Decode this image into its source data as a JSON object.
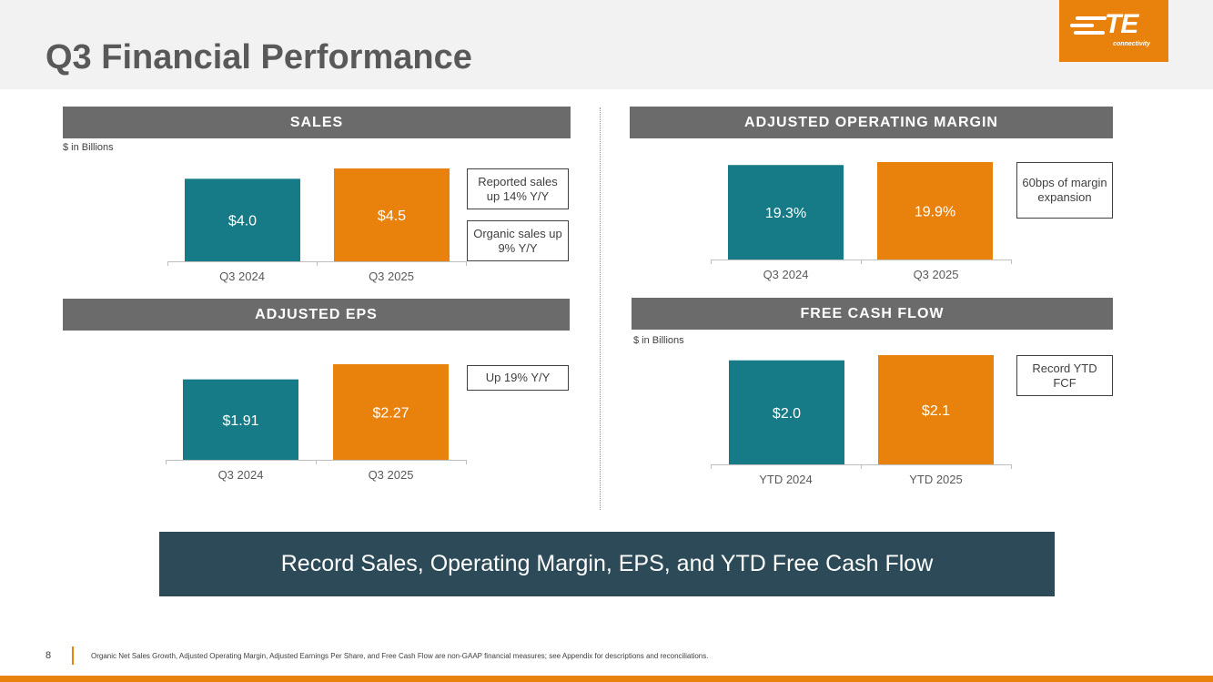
{
  "title": "Q3 Financial Performance",
  "logo": {
    "mark": "TE",
    "word": "connectivity"
  },
  "colors": {
    "teal": "#167b86",
    "orange": "#e8820c",
    "header_gray": "#6b6b6b",
    "banner": "#2d4a58"
  },
  "panels": {
    "sales": {
      "header": "SALES",
      "units": "$ in Billions",
      "callouts": [
        "Reported sales up 14% Y/Y",
        "Organic sales up 9% Y/Y"
      ]
    },
    "margin": {
      "header": "ADJUSTED OPERATING MARGIN",
      "callouts": [
        "60bps of margin expansion"
      ]
    },
    "eps": {
      "header": "ADJUSTED EPS",
      "callouts": [
        "Up 19% Y/Y"
      ]
    },
    "fcf": {
      "header": "FREE CASH FLOW",
      "units": "$ in Billions",
      "callouts": [
        "Record YTD FCF"
      ]
    }
  },
  "chart_data": [
    {
      "type": "bar",
      "title": "SALES",
      "categories": [
        "Q3 2024",
        "Q3 2025"
      ],
      "values": [
        4.0,
        4.5
      ],
      "labels": [
        "$4.0",
        "$4.5"
      ],
      "ylabel": "$ in Billions",
      "colors": [
        "#167b86",
        "#e8820c"
      ]
    },
    {
      "type": "bar",
      "title": "ADJUSTED OPERATING MARGIN",
      "categories": [
        "Q3 2024",
        "Q3 2025"
      ],
      "values": [
        19.3,
        19.9
      ],
      "labels": [
        "19.3%",
        "19.9%"
      ],
      "colors": [
        "#167b86",
        "#e8820c"
      ]
    },
    {
      "type": "bar",
      "title": "ADJUSTED EPS",
      "categories": [
        "Q3 2024",
        "Q3 2025"
      ],
      "values": [
        1.91,
        2.27
      ],
      "labels": [
        "$1.91",
        "$2.27"
      ],
      "colors": [
        "#167b86",
        "#e8820c"
      ]
    },
    {
      "type": "bar",
      "title": "FREE CASH FLOW",
      "categories": [
        "YTD 2024",
        "YTD 2025"
      ],
      "values": [
        2.0,
        2.1
      ],
      "labels": [
        "$2.0",
        "$2.1"
      ],
      "ylabel": "$ in Billions",
      "colors": [
        "#167b86",
        "#e8820c"
      ]
    }
  ],
  "banner": "Record Sales, Operating Margin, EPS, and YTD Free Cash Flow",
  "footer": {
    "page": "8",
    "note": "Organic Net Sales Growth, Adjusted Operating Margin, Adjusted Earnings Per Share, and Free Cash Flow are non-GAAP financial measures; see Appendix for descriptions and reconciliations."
  }
}
